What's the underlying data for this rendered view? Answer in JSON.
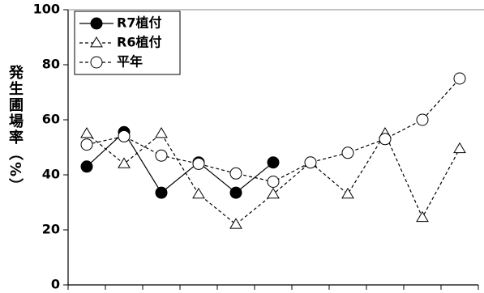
{
  "chart_data": {
    "type": "line",
    "y_label": "発生圃場率（%）",
    "categories": [
      null,
      null,
      null,
      null,
      null,
      null,
      null,
      null,
      null,
      null,
      null
    ],
    "series": [
      {
        "name": "R7植付",
        "color": "#000000",
        "marker": "circle-filled",
        "dashed": false,
        "values": [
          43,
          55.5,
          33.5,
          44.5,
          33.5,
          44.5,
          null,
          null,
          null,
          null,
          null
        ]
      },
      {
        "name": "R6植付",
        "color": "#000000",
        "marker": "triangle",
        "dashed": true,
        "values": [
          55,
          44,
          55,
          33,
          22,
          33,
          44.5,
          33,
          55,
          24.5,
          49.5
        ]
      },
      {
        "name": "平年",
        "color": "#000000",
        "marker": "circle-open",
        "dashed": true,
        "values": [
          51,
          54,
          47,
          44,
          40.5,
          37.5,
          44.5,
          48,
          53,
          60,
          75
        ]
      }
    ],
    "ylim": [
      0,
      100
    ],
    "yticks": [
      0,
      20,
      40,
      60,
      80,
      100
    ],
    "grid": false,
    "legend": "upper-left"
  }
}
